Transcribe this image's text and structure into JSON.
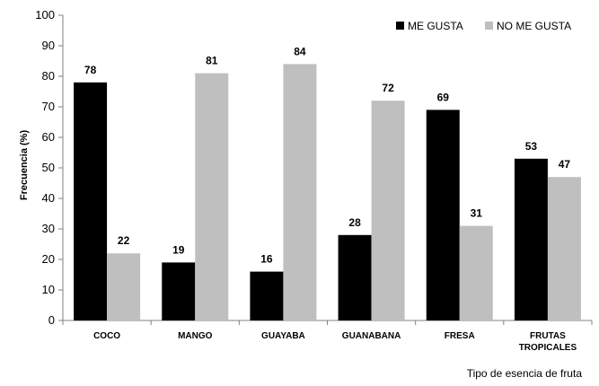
{
  "chart_data": {
    "type": "bar",
    "categories": [
      [
        "COCO"
      ],
      [
        "MANGO"
      ],
      [
        "GUAYABA"
      ],
      [
        "GUANABANA"
      ],
      [
        "FRESA"
      ],
      [
        "FRUTAS",
        "TROPICALES"
      ]
    ],
    "series": [
      {
        "name": "ME GUSTA",
        "color": "#000000",
        "values": [
          78,
          19,
          16,
          28,
          69,
          53
        ]
      },
      {
        "name": "NO ME GUSTA",
        "color": "#bfbfbf",
        "values": [
          22,
          81,
          84,
          72,
          31,
          47
        ]
      }
    ],
    "xlabel": "Tipo de esencia de fruta",
    "ylabel": "Frecuencia  (%)",
    "ylim": [
      0,
      100
    ],
    "yticks": [
      0,
      10,
      20,
      30,
      40,
      50,
      60,
      70,
      80,
      90,
      100
    ],
    "legend_position": "top-right",
    "grid": false
  }
}
